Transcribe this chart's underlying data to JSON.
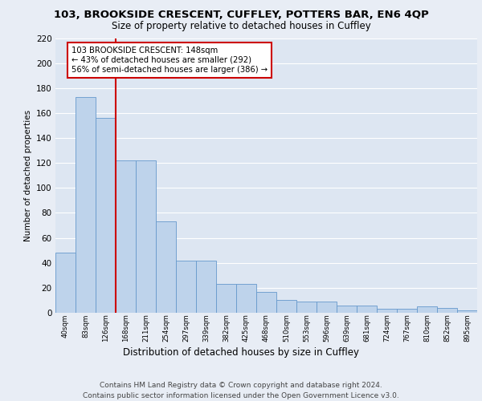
{
  "title1": "103, BROOKSIDE CRESCENT, CUFFLEY, POTTERS BAR, EN6 4QP",
  "title2": "Size of property relative to detached houses in Cuffley",
  "xlabel": "Distribution of detached houses by size in Cuffley",
  "ylabel": "Number of detached properties",
  "categories": [
    "40sqm",
    "83sqm",
    "126sqm",
    "168sqm",
    "211sqm",
    "254sqm",
    "297sqm",
    "339sqm",
    "382sqm",
    "425sqm",
    "468sqm",
    "510sqm",
    "553sqm",
    "596sqm",
    "639sqm",
    "681sqm",
    "724sqm",
    "767sqm",
    "810sqm",
    "852sqm",
    "895sqm"
  ],
  "bar_values": [
    48,
    173,
    156,
    122,
    122,
    73,
    42,
    42,
    23,
    23,
    17,
    10,
    9,
    9,
    6,
    6,
    3,
    3,
    5,
    4,
    2
  ],
  "bar_color": "#bed3eb",
  "bar_edge_color": "#6699cc",
  "background_color": "#dde6f2",
  "grid_color": "#ffffff",
  "red_line_x": 2.5,
  "annotation_text": "103 BROOKSIDE CRESCENT: 148sqm\n← 43% of detached houses are smaller (292)\n56% of semi-detached houses are larger (386) →",
  "annotation_box_color": "#ffffff",
  "annotation_box_edge_color": "#cc0000",
  "footer_text": "Contains HM Land Registry data © Crown copyright and database right 2024.\nContains public sector information licensed under the Open Government Licence v3.0.",
  "fig_bg_color": "#e8edf5",
  "ylim": [
    0,
    220
  ],
  "yticks": [
    0,
    20,
    40,
    60,
    80,
    100,
    120,
    140,
    160,
    180,
    200,
    220
  ]
}
